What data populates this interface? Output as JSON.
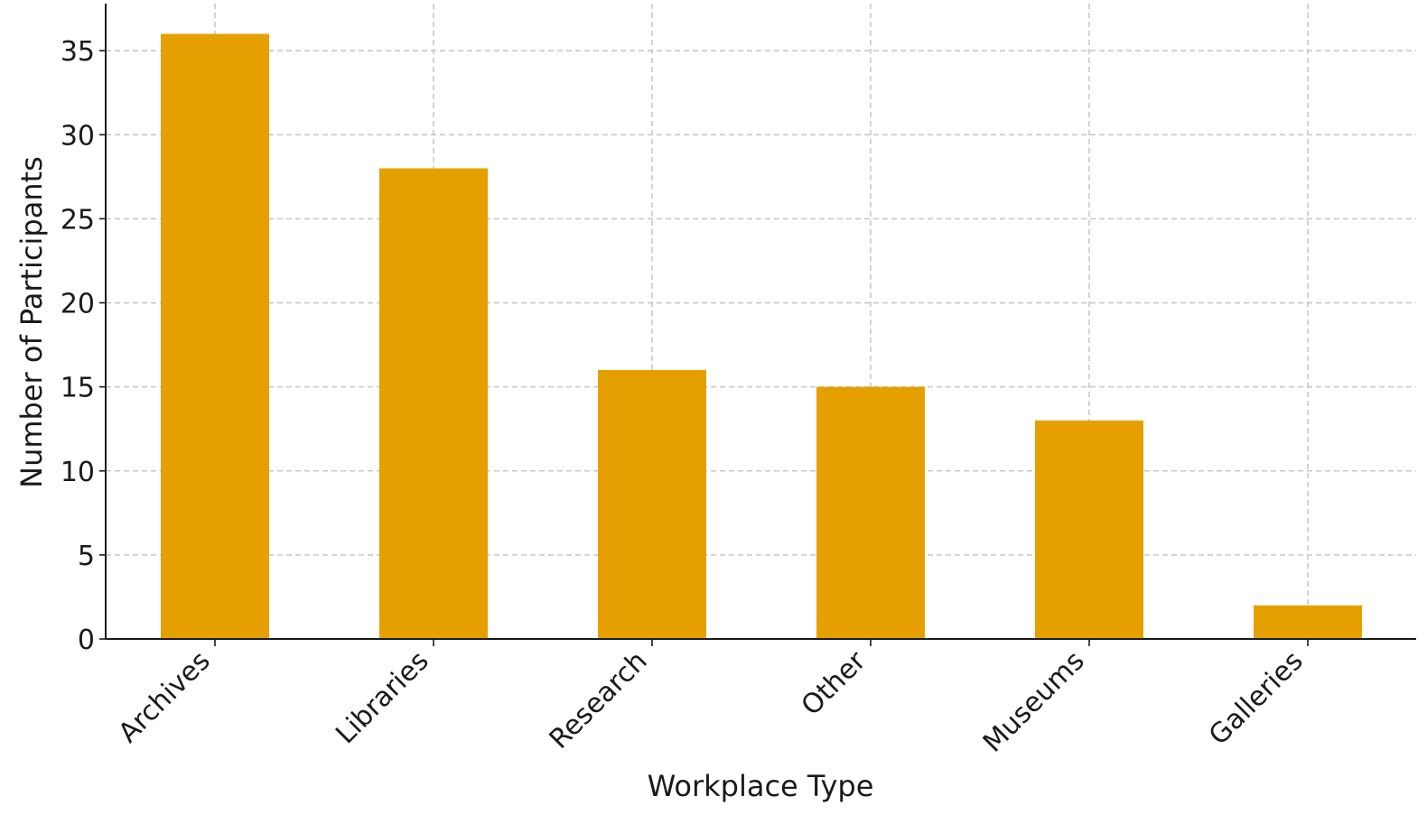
{
  "chart_data": {
    "type": "bar",
    "title": "",
    "xlabel": "Workplace Type",
    "ylabel": "Number of Participants",
    "categories": [
      "Archives",
      "Libraries",
      "Research",
      "Other",
      "Museums",
      "Galleries"
    ],
    "values": [
      36,
      28,
      16,
      15,
      13,
      2
    ],
    "ylim": [
      0,
      37.8
    ],
    "yticks": [
      0,
      5,
      10,
      15,
      20,
      25,
      30,
      35
    ],
    "grid": true,
    "bar_color": "#E5A000"
  }
}
